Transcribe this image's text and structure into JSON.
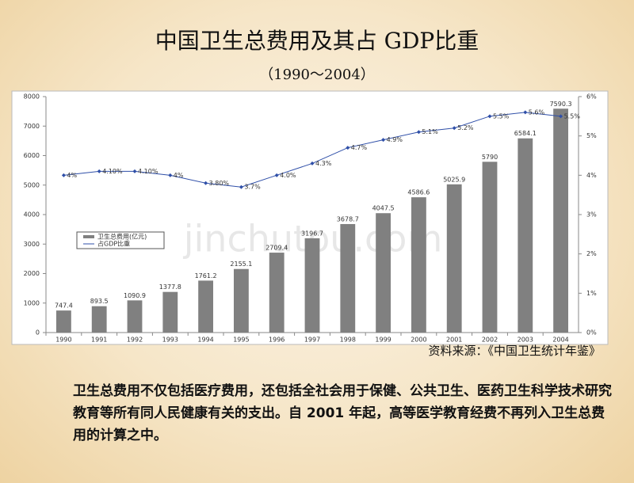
{
  "slide": {
    "title": "中国卫生总费用及其占 GDP比重",
    "subtitle": "（1990～2004）",
    "source": "资料来源：《中国卫生统计年鉴》",
    "note": "卫生总费用不仅包括医疗费用，还包括全社会用于保健、公共卫生、医药卫生科学技术研究教育等所有同人民健康有关的支出。自 2001 年起，高等医学教育经费不再列入卫生总费用的计算之中。",
    "watermark": "jinchutou.com"
  },
  "chart_data": {
    "type": "bar_line",
    "categories": [
      "1990",
      "1991",
      "1992",
      "1993",
      "1994",
      "1995",
      "1996",
      "1997",
      "1998",
      "1999",
      "2000",
      "2001",
      "2002",
      "2003",
      "2004"
    ],
    "series": [
      {
        "name": "卫生总费用(亿元)",
        "color": "#808080",
        "values": [
          747.4,
          893.5,
          1090.9,
          1377.8,
          1761.2,
          2155.1,
          2709.4,
          3196.7,
          3678.7,
          4047.5,
          4586.6,
          5025.9,
          5790,
          6584.1,
          7590.3
        ]
      },
      {
        "name": "占GDP比重",
        "color": "#2f4fa8",
        "axis": "y2",
        "values": [
          4,
          4.1,
          4.1,
          4,
          3.8,
          3.7,
          4.0,
          4.3,
          4.7,
          4.9,
          5.1,
          5.2,
          5.5,
          5.6,
          5.5
        ],
        "value_labels": [
          "4%",
          "4.10%",
          "4.10%",
          "4%",
          "3.80%",
          "3.7%",
          "4.0%",
          "4.3%",
          "4.7%",
          "4.9%",
          "5.1%",
          "5.2%",
          "5.5%",
          "5.6%",
          "5.5%"
        ]
      }
    ],
    "ylim": [
      0,
      8000
    ],
    "yticks": [
      0,
      1000,
      2000,
      3000,
      4000,
      5000,
      6000,
      7000,
      8000
    ],
    "y2lim": [
      0,
      6
    ],
    "y2ticks": [
      {
        "value": 0,
        "label": "0%"
      },
      {
        "value": 1,
        "label": "1%"
      },
      {
        "value": 2,
        "label": "2%"
      },
      {
        "value": 3,
        "label": "3%"
      },
      {
        "value": 4,
        "label": "4%"
      },
      {
        "value": 5,
        "label": "5%"
      },
      {
        "value": 6,
        "label": "6%"
      }
    ],
    "legend": "left"
  }
}
